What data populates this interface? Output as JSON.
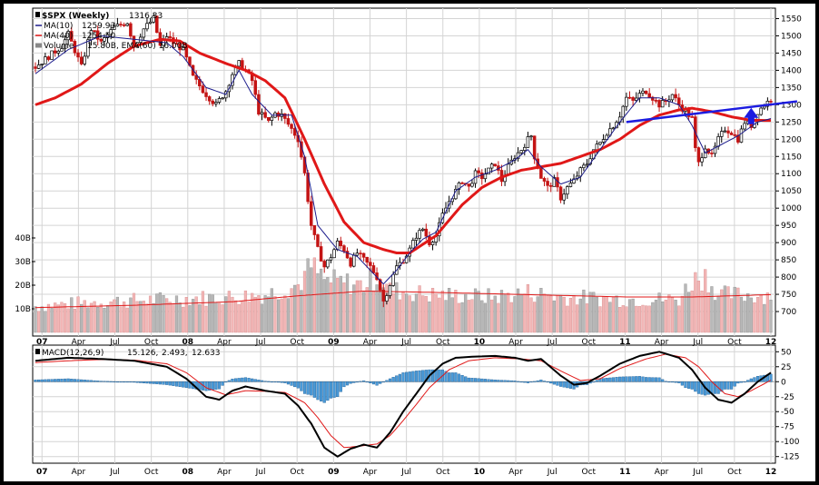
{
  "chart_data": [
    {
      "type": "candlestick",
      "title": "$SPX (Weekly)",
      "last": "1316.33",
      "ylim": [
        650,
        1575
      ],
      "y_ticks": [
        700,
        750,
        800,
        850,
        900,
        950,
        1000,
        1050,
        1100,
        1150,
        1200,
        1250,
        1300,
        1350,
        1400,
        1450,
        1500,
        1550
      ],
      "volume_ticks": [
        "10B",
        "20B",
        "30B",
        "40B"
      ],
      "legend": [
        {
          "label": "MA(10)",
          "value": "1259.93",
          "color": "#1c1c8c"
        },
        {
          "label": "MA(40)",
          "value": "1254.50",
          "color": "#e01818"
        },
        {
          "label": "Volume",
          "value": "15.80B, EMA(60) 16.00B",
          "color": "#888888"
        }
      ],
      "x_labels": [
        "07",
        "Apr",
        "Jul",
        "Oct",
        "08",
        "Apr",
        "Jul",
        "Oct",
        "09",
        "Apr",
        "Jul",
        "Oct",
        "10",
        "Apr",
        "Jul",
        "Oct",
        "11",
        "Apr",
        "Jul",
        "Oct",
        "12"
      ],
      "x_bold": [
        "07",
        "08",
        "09",
        "10",
        "11",
        "12"
      ],
      "price_anchors": [
        [
          0,
          1410
        ],
        [
          4,
          1440
        ],
        [
          8,
          1470
        ],
        [
          10,
          1505
        ],
        [
          14,
          1410
        ],
        [
          17,
          1520
        ],
        [
          20,
          1480
        ],
        [
          24,
          1525
        ],
        [
          28,
          1540
        ],
        [
          30,
          1470
        ],
        [
          33,
          1520
        ],
        [
          36,
          1550
        ],
        [
          38,
          1470
        ],
        [
          40,
          1500
        ],
        [
          42,
          1480
        ],
        [
          45,
          1460
        ],
        [
          48,
          1380
        ],
        [
          52,
          1330
        ],
        [
          55,
          1300
        ],
        [
          58,
          1340
        ],
        [
          60,
          1390
        ],
        [
          62,
          1420
        ],
        [
          64,
          1400
        ],
        [
          66,
          1370
        ],
        [
          68,
          1280
        ],
        [
          71,
          1250
        ],
        [
          73,
          1275
        ],
        [
          75,
          1270
        ],
        [
          78,
          1230
        ],
        [
          80,
          1200
        ],
        [
          82,
          1100
        ],
        [
          84,
          950
        ],
        [
          86,
          880
        ],
        [
          88,
          830
        ],
        [
          90,
          860
        ],
        [
          92,
          900
        ],
        [
          94,
          880
        ],
        [
          96,
          840
        ],
        [
          98,
          870
        ],
        [
          100,
          850
        ],
        [
          102,
          830
        ],
        [
          104,
          800
        ],
        [
          106,
          730
        ],
        [
          108,
          780
        ],
        [
          110,
          830
        ],
        [
          112,
          850
        ],
        [
          114,
          880
        ],
        [
          116,
          920
        ],
        [
          118,
          940
        ],
        [
          120,
          900
        ],
        [
          122,
          920
        ],
        [
          124,
          980
        ],
        [
          126,
          1020
        ],
        [
          128,
          1050
        ],
        [
          130,
          1080
        ],
        [
          132,
          1060
        ],
        [
          134,
          1100
        ],
        [
          136,
          1090
        ],
        [
          138,
          1110
        ],
        [
          140,
          1130
        ],
        [
          142,
          1080
        ],
        [
          144,
          1120
        ],
        [
          146,
          1150
        ],
        [
          148,
          1170
        ],
        [
          150,
          1200
        ],
        [
          151,
          1210
        ],
        [
          152,
          1150
        ],
        [
          154,
          1090
        ],
        [
          156,
          1060
        ],
        [
          158,
          1080
        ],
        [
          160,
          1030
        ],
        [
          162,
          1060
        ],
        [
          164,
          1080
        ],
        [
          166,
          1110
        ],
        [
          168,
          1130
        ],
        [
          170,
          1170
        ],
        [
          172,
          1190
        ],
        [
          174,
          1220
        ],
        [
          176,
          1240
        ],
        [
          178,
          1270
        ],
        [
          180,
          1320
        ],
        [
          182,
          1310
        ],
        [
          184,
          1330
        ],
        [
          186,
          1340
        ],
        [
          188,
          1320
        ],
        [
          190,
          1300
        ],
        [
          192,
          1310
        ],
        [
          194,
          1330
        ],
        [
          196,
          1300
        ],
        [
          198,
          1280
        ],
        [
          200,
          1260
        ],
        [
          201,
          1170
        ],
        [
          202,
          1130
        ],
        [
          204,
          1180
        ],
        [
          206,
          1150
        ],
        [
          208,
          1200
        ],
        [
          210,
          1230
        ],
        [
          212,
          1220
        ],
        [
          214,
          1200
        ],
        [
          216,
          1250
        ],
        [
          218,
          1240
        ],
        [
          220,
          1280
        ],
        [
          222,
          1300
        ],
        [
          224,
          1316
        ]
      ],
      "ma10_anchors": [
        [
          0,
          1390
        ],
        [
          10,
          1460
        ],
        [
          20,
          1500
        ],
        [
          30,
          1490
        ],
        [
          40,
          1480
        ],
        [
          45,
          1440
        ],
        [
          52,
          1350
        ],
        [
          58,
          1330
        ],
        [
          62,
          1400
        ],
        [
          66,
          1330
        ],
        [
          72,
          1270
        ],
        [
          78,
          1270
        ],
        [
          82,
          1150
        ],
        [
          86,
          950
        ],
        [
          92,
          880
        ],
        [
          98,
          860
        ],
        [
          104,
          800
        ],
        [
          106,
          780
        ],
        [
          110,
          820
        ],
        [
          114,
          870
        ],
        [
          118,
          910
        ],
        [
          122,
          930
        ],
        [
          128,
          1050
        ],
        [
          134,
          1090
        ],
        [
          140,
          1110
        ],
        [
          146,
          1140
        ],
        [
          150,
          1170
        ],
        [
          154,
          1120
        ],
        [
          160,
          1070
        ],
        [
          166,
          1090
        ],
        [
          172,
          1170
        ],
        [
          178,
          1250
        ],
        [
          184,
          1320
        ],
        [
          190,
          1320
        ],
        [
          196,
          1300
        ],
        [
          200,
          1240
        ],
        [
          204,
          1160
        ],
        [
          208,
          1180
        ],
        [
          214,
          1210
        ],
        [
          220,
          1250
        ],
        [
          224,
          1260
        ]
      ],
      "ma40_anchors": [
        [
          0,
          1300
        ],
        [
          6,
          1320
        ],
        [
          14,
          1360
        ],
        [
          22,
          1420
        ],
        [
          30,
          1470
        ],
        [
          38,
          1490
        ],
        [
          44,
          1485
        ],
        [
          50,
          1450
        ],
        [
          58,
          1420
        ],
        [
          64,
          1400
        ],
        [
          70,
          1370
        ],
        [
          76,
          1320
        ],
        [
          82,
          1200
        ],
        [
          88,
          1070
        ],
        [
          94,
          960
        ],
        [
          100,
          900
        ],
        [
          106,
          880
        ],
        [
          110,
          870
        ],
        [
          114,
          870
        ],
        [
          118,
          895
        ],
        [
          122,
          920
        ],
        [
          126,
          965
        ],
        [
          130,
          1010
        ],
        [
          136,
          1060
        ],
        [
          142,
          1090
        ],
        [
          148,
          1110
        ],
        [
          154,
          1120
        ],
        [
          160,
          1130
        ],
        [
          166,
          1150
        ],
        [
          172,
          1170
        ],
        [
          178,
          1200
        ],
        [
          184,
          1240
        ],
        [
          190,
          1270
        ],
        [
          196,
          1285
        ],
        [
          200,
          1290
        ],
        [
          206,
          1280
        ],
        [
          212,
          1265
        ],
        [
          218,
          1255
        ],
        [
          224,
          1254.5
        ]
      ],
      "volume_anchors": [
        [
          0,
          11
        ],
        [
          20,
          13
        ],
        [
          40,
          14
        ],
        [
          60,
          15
        ],
        [
          70,
          16
        ],
        [
          80,
          20
        ],
        [
          84,
          28
        ],
        [
          88,
          22
        ],
        [
          100,
          20
        ],
        [
          104,
          24
        ],
        [
          108,
          18
        ],
        [
          120,
          16
        ],
        [
          140,
          15
        ],
        [
          150,
          17
        ],
        [
          160,
          15
        ],
        [
          180,
          14
        ],
        [
          196,
          14
        ],
        [
          200,
          22
        ],
        [
          204,
          24
        ],
        [
          208,
          16
        ],
        [
          224,
          15.8
        ]
      ],
      "volume_ema_anchors": [
        [
          0,
          10.5
        ],
        [
          30,
          11.5
        ],
        [
          60,
          13
        ],
        [
          80,
          15.5
        ],
        [
          100,
          17.5
        ],
        [
          120,
          17
        ],
        [
          150,
          16
        ],
        [
          180,
          15
        ],
        [
          200,
          15
        ],
        [
          224,
          16
        ]
      ],
      "trendline": {
        "from": [
          1250,
          180
        ],
        "to": [
          1310,
          232
        ],
        "color": "#1c1ce0"
      },
      "arrow": {
        "color": "#1c1ce0"
      }
    },
    {
      "type": "line",
      "title": "MACD(12,26,9)",
      "values": [
        "15.126",
        "2.493",
        "12.633"
      ],
      "value_colors": [
        "#000000",
        "#e01818",
        "#1a6fc0"
      ],
      "ylim": [
        -130,
        55
      ],
      "y_ticks": [
        50,
        25,
        0,
        -25,
        -50,
        -75,
        -100,
        -125
      ],
      "macd_anchors": [
        [
          0,
          35
        ],
        [
          10,
          40
        ],
        [
          20,
          38
        ],
        [
          30,
          35
        ],
        [
          40,
          25
        ],
        [
          46,
          5
        ],
        [
          52,
          -25
        ],
        [
          56,
          -30
        ],
        [
          60,
          -15
        ],
        [
          64,
          -8
        ],
        [
          70,
          -15
        ],
        [
          76,
          -20
        ],
        [
          80,
          -40
        ],
        [
          84,
          -70
        ],
        [
          88,
          -110
        ],
        [
          92,
          -125
        ],
        [
          96,
          -112
        ],
        [
          100,
          -105
        ],
        [
          104,
          -110
        ],
        [
          108,
          -85
        ],
        [
          112,
          -50
        ],
        [
          116,
          -20
        ],
        [
          120,
          10
        ],
        [
          124,
          30
        ],
        [
          128,
          40
        ],
        [
          134,
          42
        ],
        [
          140,
          43
        ],
        [
          146,
          40
        ],
        [
          150,
          35
        ],
        [
          154,
          38
        ],
        [
          160,
          10
        ],
        [
          164,
          -5
        ],
        [
          168,
          -2
        ],
        [
          172,
          10
        ],
        [
          178,
          30
        ],
        [
          184,
          43
        ],
        [
          190,
          50
        ],
        [
          196,
          40
        ],
        [
          200,
          20
        ],
        [
          204,
          -10
        ],
        [
          208,
          -30
        ],
        [
          212,
          -35
        ],
        [
          216,
          -20
        ],
        [
          220,
          0
        ],
        [
          224,
          15.126
        ]
      ],
      "signal_anchors": [
        [
          0,
          32
        ],
        [
          10,
          35
        ],
        [
          20,
          37
        ],
        [
          30,
          36
        ],
        [
          40,
          30
        ],
        [
          46,
          15
        ],
        [
          52,
          -10
        ],
        [
          58,
          -22
        ],
        [
          64,
          -15
        ],
        [
          70,
          -16
        ],
        [
          76,
          -18
        ],
        [
          82,
          -35
        ],
        [
          86,
          -60
        ],
        [
          90,
          -90
        ],
        [
          94,
          -110
        ],
        [
          98,
          -108
        ],
        [
          104,
          -104
        ],
        [
          108,
          -90
        ],
        [
          112,
          -65
        ],
        [
          116,
          -38
        ],
        [
          120,
          -10
        ],
        [
          126,
          20
        ],
        [
          132,
          35
        ],
        [
          140,
          40
        ],
        [
          148,
          38
        ],
        [
          154,
          35
        ],
        [
          160,
          18
        ],
        [
          166,
          2
        ],
        [
          172,
          5
        ],
        [
          178,
          22
        ],
        [
          186,
          38
        ],
        [
          192,
          46
        ],
        [
          198,
          40
        ],
        [
          202,
          25
        ],
        [
          206,
          0
        ],
        [
          210,
          -20
        ],
        [
          214,
          -25
        ],
        [
          218,
          -15
        ],
        [
          224,
          2.493
        ]
      ]
    }
  ]
}
